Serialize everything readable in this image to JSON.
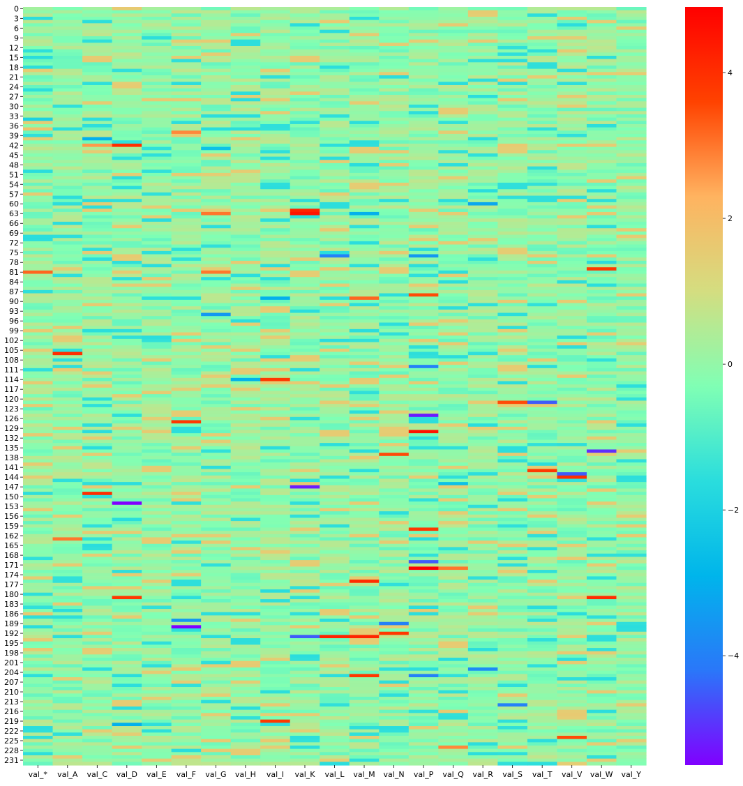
{
  "chart_data": {
    "type": "heatmap",
    "colormap": "rainbow",
    "colormap_stops": [
      "#8000ff",
      "#2a77f9",
      "#00b5eb",
      "#2adddd",
      "#80ffb4",
      "#d4dd80",
      "#ffb360",
      "#ff4200",
      "#ff0000"
    ],
    "vmin": -5.5,
    "vmax": 4.9,
    "n_rows": 233,
    "columns": [
      "val_*",
      "val_A",
      "val_C",
      "val_D",
      "val_E",
      "val_F",
      "val_G",
      "val_H",
      "val_I",
      "val_K",
      "val_L",
      "val_M",
      "val_N",
      "val_P",
      "val_Q",
      "val_R",
      "val_S",
      "val_T",
      "val_V",
      "val_W",
      "val_Y"
    ],
    "row_tick_labels": [
      "0",
      "3",
      "6",
      "9",
      "12",
      "15",
      "18",
      "21",
      "24",
      "27",
      "30",
      "33",
      "36",
      "39",
      "42",
      "45",
      "48",
      "51",
      "54",
      "57",
      "60",
      "63",
      "66",
      "69",
      "72",
      "75",
      "78",
      "81",
      "84",
      "87",
      "90",
      "93",
      "96",
      "99",
      "102",
      "105",
      "108",
      "111",
      "114",
      "117",
      "120",
      "123",
      "126",
      "129",
      "132",
      "135",
      "138",
      "141",
      "144",
      "147",
      "150",
      "153",
      "156",
      "159",
      "162",
      "165",
      "168",
      "171",
      "174",
      "177",
      "180",
      "183",
      "186",
      "189",
      "192",
      "195",
      "198",
      "201",
      "204",
      "207",
      "210",
      "213",
      "216",
      "219",
      "222",
      "225",
      "228",
      "231"
    ],
    "colorbar_ticks": [
      "4",
      "2",
      "0",
      "−2",
      "−4"
    ],
    "colorbar_tick_values": [
      4,
      2,
      0,
      -2,
      -4
    ],
    "default_value": 0.0,
    "notable_cells": [
      {
        "row": 34,
        "col": "val_*",
        "value": -2.0
      },
      {
        "row": 37,
        "col": "val_*",
        "value": 1.8
      },
      {
        "row": 40,
        "col": "val_C",
        "value": -3.0
      },
      {
        "row": 38,
        "col": "val_F",
        "value": 2.8
      },
      {
        "row": 42,
        "col": "val_D",
        "value": 4.0
      },
      {
        "row": 42,
        "col": "val_C",
        "value": 2.6
      },
      {
        "row": 43,
        "col": "val_G",
        "value": -2.5
      },
      {
        "row": 62,
        "col": "val_K",
        "value": 4.2
      },
      {
        "row": 63,
        "col": "val_K",
        "value": 4.5
      },
      {
        "row": 63,
        "col": "val_M",
        "value": -3.0
      },
      {
        "row": 60,
        "col": "val_R",
        "value": -3.2
      },
      {
        "row": 63,
        "col": "val_G",
        "value": 3.0
      },
      {
        "row": 76,
        "col": "val_L",
        "value": -4.0
      },
      {
        "row": 76,
        "col": "val_P",
        "value": -3.5
      },
      {
        "row": 80,
        "col": "val_W",
        "value": 3.8
      },
      {
        "row": 81,
        "col": "val_*",
        "value": 3.2
      },
      {
        "row": 81,
        "col": "val_G",
        "value": 3.0
      },
      {
        "row": 89,
        "col": "val_I",
        "value": -3.0
      },
      {
        "row": 89,
        "col": "val_M",
        "value": 3.2
      },
      {
        "row": 88,
        "col": "val_P",
        "value": 3.5
      },
      {
        "row": 94,
        "col": "val_G",
        "value": -3.5
      },
      {
        "row": 106,
        "col": "val_A",
        "value": 4.0
      },
      {
        "row": 110,
        "col": "val_P",
        "value": -4.0
      },
      {
        "row": 114,
        "col": "val_I",
        "value": 3.8
      },
      {
        "row": 114,
        "col": "val_H",
        "value": -3.0
      },
      {
        "row": 121,
        "col": "val_T",
        "value": -4.5
      },
      {
        "row": 121,
        "col": "val_S",
        "value": 3.5
      },
      {
        "row": 125,
        "col": "val_P",
        "value": -5.2
      },
      {
        "row": 127,
        "col": "val_F",
        "value": 3.8
      },
      {
        "row": 130,
        "col": "val_P",
        "value": 4.5
      },
      {
        "row": 136,
        "col": "val_W",
        "value": -5.0
      },
      {
        "row": 137,
        "col": "val_N",
        "value": 3.5
      },
      {
        "row": 142,
        "col": "val_T",
        "value": 3.8
      },
      {
        "row": 143,
        "col": "val_V",
        "value": -4.5
      },
      {
        "row": 144,
        "col": "val_V",
        "value": 4.0
      },
      {
        "row": 147,
        "col": "val_K",
        "value": -5.2
      },
      {
        "row": 146,
        "col": "val_Q",
        "value": -2.5
      },
      {
        "row": 149,
        "col": "val_C",
        "value": 4.0
      },
      {
        "row": 152,
        "col": "val_D",
        "value": -5.5
      },
      {
        "row": 160,
        "col": "val_P",
        "value": 3.8
      },
      {
        "row": 163,
        "col": "val_A",
        "value": 3.0
      },
      {
        "row": 170,
        "col": "val_P",
        "value": -4.5
      },
      {
        "row": 172,
        "col": "val_P",
        "value": 4.9
      },
      {
        "row": 172,
        "col": "val_Q",
        "value": 3.0
      },
      {
        "row": 176,
        "col": "val_M",
        "value": 4.0
      },
      {
        "row": 181,
        "col": "val_D",
        "value": 3.8
      },
      {
        "row": 181,
        "col": "val_W",
        "value": 4.0
      },
      {
        "row": 188,
        "col": "val_F",
        "value": -3.5
      },
      {
        "row": 190,
        "col": "val_F",
        "value": -5.5
      },
      {
        "row": 189,
        "col": "val_N",
        "value": -4.0
      },
      {
        "row": 193,
        "col": "val_L",
        "value": 4.2
      },
      {
        "row": 193,
        "col": "val_M",
        "value": 4.2
      },
      {
        "row": 193,
        "col": "val_K",
        "value": -4.5
      },
      {
        "row": 192,
        "col": "val_N",
        "value": 3.8
      },
      {
        "row": 205,
        "col": "val_P",
        "value": -4.0
      },
      {
        "row": 205,
        "col": "val_M",
        "value": 3.8
      },
      {
        "row": 203,
        "col": "val_R",
        "value": -3.8
      },
      {
        "row": 214,
        "col": "val_S",
        "value": -4.0
      },
      {
        "row": 220,
        "col": "val_D",
        "value": -3.0
      },
      {
        "row": 219,
        "col": "val_I",
        "value": 3.8
      },
      {
        "row": 224,
        "col": "val_V",
        "value": 3.5
      },
      {
        "row": 227,
        "col": "val_Q",
        "value": 2.8
      }
    ]
  }
}
